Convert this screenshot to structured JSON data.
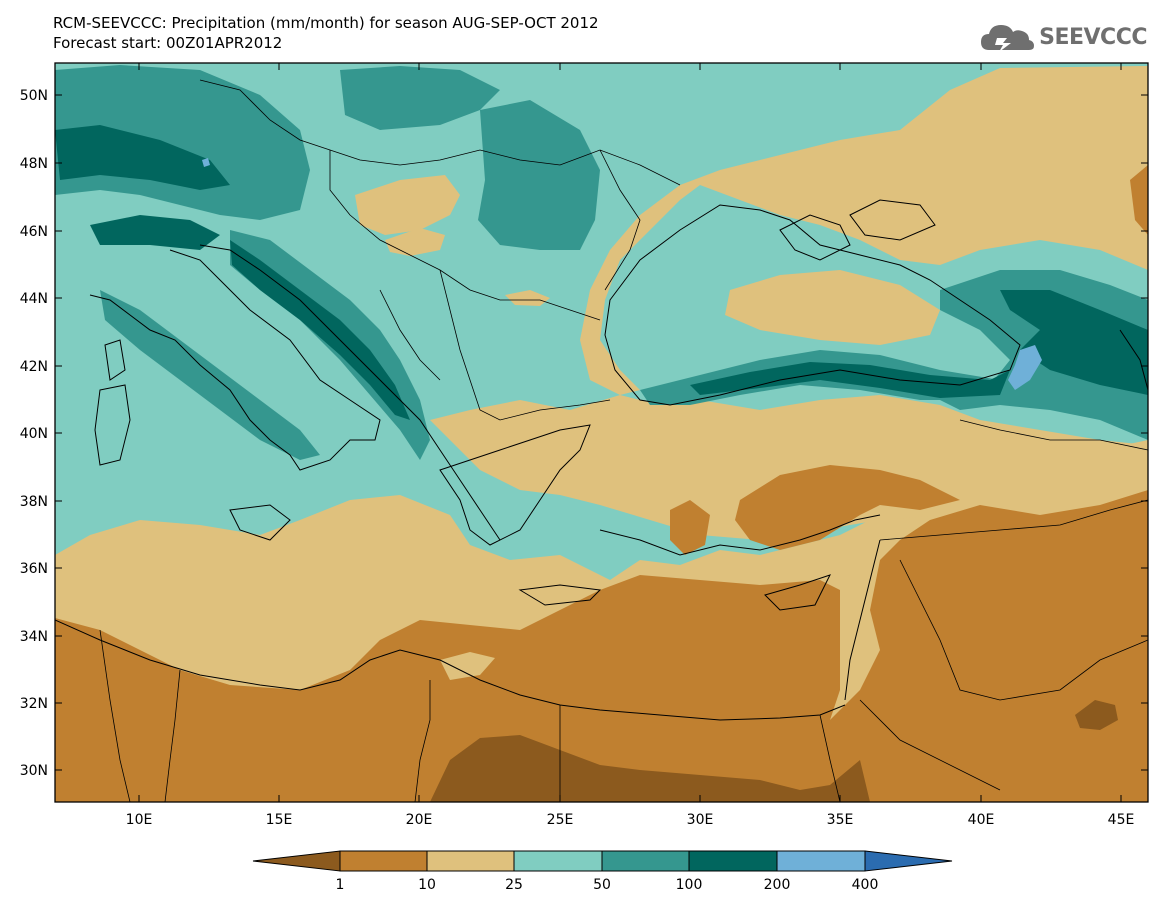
{
  "header": {
    "title_line1": "RCM-SEEVCCC: Precipitation (mm/month) for season AUG-SEP-OCT 2012",
    "title_line2": "Forecast start: 00Z01APR2012"
  },
  "logo": {
    "icon": "cloud-logo-icon",
    "text": "SEEVCCC"
  },
  "map": {
    "lat_labels": [
      "50N",
      "48N",
      "46N",
      "44N",
      "42N",
      "40N",
      "38N",
      "36N",
      "34N",
      "32N",
      "30N"
    ],
    "lon_labels": [
      "10E",
      "15E",
      "20E",
      "25E",
      "30E",
      "35E",
      "40E",
      "45E"
    ],
    "palette": {
      "lt1": "#8c5a1e",
      "c1_10": "#c08030",
      "c10_25": "#dfc17d",
      "c25_50": "#80cdc1",
      "c50_100": "#35978f",
      "c100_200": "#01665e",
      "c200_400": "#6fb0d8",
      "gt400": "#2b6cb0"
    }
  },
  "legend": {
    "labels": [
      "1",
      "10",
      "25",
      "50",
      "100",
      "200",
      "400"
    ],
    "colors": [
      "#8c5a1e",
      "#c08030",
      "#dfc17d",
      "#80cdc1",
      "#35978f",
      "#01665e",
      "#6fb0d8",
      "#2b6cb0"
    ]
  }
}
